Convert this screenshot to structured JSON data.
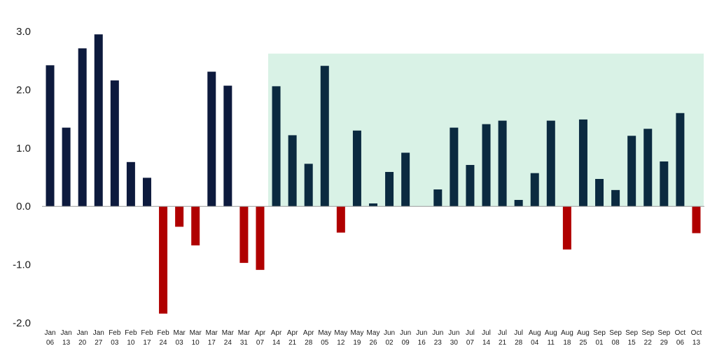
{
  "chart_data": {
    "type": "bar",
    "title": "",
    "xlabel": "",
    "ylabel": "",
    "ylim": [
      -2.0,
      3.0
    ],
    "yticks": [
      "3.0",
      "2.0",
      "1.0",
      "0.0",
      "-1.0",
      "-2.0"
    ],
    "ytick_values": [
      3,
      2,
      1,
      0,
      -1,
      -2
    ],
    "grid": false,
    "categories": [
      [
        "Jan",
        "06"
      ],
      [
        "Jan",
        "13"
      ],
      [
        "Jan",
        "20"
      ],
      [
        "Jan",
        "27"
      ],
      [
        "Feb",
        "03"
      ],
      [
        "Feb",
        "10"
      ],
      [
        "Feb",
        "17"
      ],
      [
        "Feb",
        "24"
      ],
      [
        "Mar",
        "03"
      ],
      [
        "Mar",
        "10"
      ],
      [
        "Mar",
        "17"
      ],
      [
        "Mar",
        "24"
      ],
      [
        "Mar",
        "31"
      ],
      [
        "Apr",
        "07"
      ],
      [
        "Apr",
        "14"
      ],
      [
        "Apr",
        "21"
      ],
      [
        "Apr",
        "28"
      ],
      [
        "May",
        "05"
      ],
      [
        "May",
        "12"
      ],
      [
        "May",
        "19"
      ],
      [
        "May",
        "26"
      ],
      [
        "Jun",
        "02"
      ],
      [
        "Jun",
        "09"
      ],
      [
        "Jun",
        "16"
      ],
      [
        "Jun",
        "23"
      ],
      [
        "Jun",
        "30"
      ],
      [
        "Jul",
        "07"
      ],
      [
        "Jul",
        "14"
      ],
      [
        "Jul",
        "21"
      ],
      [
        "Jul",
        "28"
      ],
      [
        "Aug",
        "04"
      ],
      [
        "Aug",
        "11"
      ],
      [
        "Aug",
        "18"
      ],
      [
        "Aug",
        "25"
      ],
      [
        "Sep",
        "01"
      ],
      [
        "Sep",
        "08"
      ],
      [
        "Sep",
        "15"
      ],
      [
        "Sep",
        "22"
      ],
      [
        "Sep",
        "29"
      ],
      [
        "Oct",
        "06"
      ],
      [
        "Oct",
        "13"
      ]
    ],
    "values": [
      2.42,
      1.35,
      2.71,
      2.95,
      2.16,
      0.76,
      0.49,
      -1.84,
      -0.35,
      -0.67,
      2.31,
      2.07,
      -0.97,
      -1.09,
      2.06,
      1.22,
      0.73,
      2.41,
      -0.45,
      1.3,
      0.05,
      0.59,
      0.92,
      0.0,
      0.29,
      1.35,
      0.71,
      1.41,
      1.47,
      0.11,
      0.57,
      1.47,
      -0.74,
      1.49,
      0.47,
      0.28,
      1.21,
      1.33,
      0.77,
      1.6,
      -0.46
    ],
    "highlight_region": {
      "start_category_index": 14,
      "end_category_index": 40,
      "top_value": 2.62,
      "color": "#d9f2e6"
    },
    "colors": {
      "positive": "#0d1a3d",
      "positive_highlighted": "#0b2a40",
      "negative": "#b00000",
      "axis": "#9a9a9a"
    }
  }
}
